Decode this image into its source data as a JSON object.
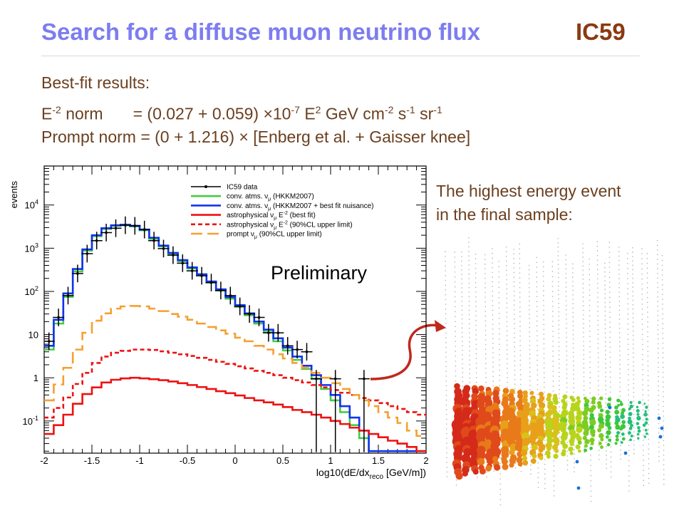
{
  "slide": {
    "title": "Search for a diffuse muon neutrino flux",
    "tag": "IC59",
    "results_heading": "Best-fit results:",
    "e2_label": "E",
    "e2_exp": "-2",
    "e2_norm_word": "norm",
    "e2_value": "= (0.027 + 0.059) ×10",
    "e2_value_exp": "-7",
    "e2_units_E": "E",
    "e2_units_E_exp": "2",
    "e2_units_rest": "GeV cm",
    "e2_units_cm_exp": "-2",
    "e2_units_s": "s",
    "e2_units_s_exp": "-1",
    "e2_units_sr": "sr",
    "e2_units_sr_exp": "-1",
    "prompt_line": "Prompt norm = (0 + 1.216) × [Enberg et al. + Gaisser knee]",
    "side_line1": "The highest energy event",
    "side_line2": "in the final sample:"
  },
  "chart_data": {
    "type": "line",
    "ylabel": "events",
    "xlabel": "log10(dE/dx",
    "xlabel_sub": "reco",
    "xlabel_tail": " [GeV/m])",
    "x_ticks": [
      "-2",
      "-1.5",
      "-1",
      "-0.5",
      "0",
      "0.5",
      "1",
      "1.5",
      "2"
    ],
    "y_ticks": [
      {
        "v": 0.1,
        "base": "10",
        "exp": "-1"
      },
      {
        "v": 1,
        "base": "1",
        "exp": ""
      },
      {
        "v": 10,
        "base": "10",
        "exp": ""
      },
      {
        "v": 100,
        "base": "10",
        "exp": "2"
      },
      {
        "v": 1000,
        "base": "10",
        "exp": "3"
      },
      {
        "v": 10000,
        "base": "10",
        "exp": "4"
      }
    ],
    "xlim": [
      -2,
      2
    ],
    "ylim": [
      0.018,
      80000
    ],
    "log_y": true,
    "annotation": "Preliminary",
    "bin_edges": [
      -2.0,
      -1.9,
      -1.8,
      -1.7,
      -1.6,
      -1.5,
      -1.4,
      -1.3,
      -1.2,
      -1.1,
      -1.0,
      -0.9,
      -0.8,
      -0.7,
      -0.6,
      -0.5,
      -0.4,
      -0.3,
      -0.2,
      -0.1,
      0.0,
      0.1,
      0.2,
      0.3,
      0.4,
      0.5,
      0.6,
      0.7,
      0.8,
      0.9,
      1.0,
      1.1,
      1.2,
      1.3,
      1.4,
      1.5,
      1.6,
      1.7,
      1.8,
      1.9,
      2.0
    ],
    "series": [
      {
        "name": "IC59 data",
        "style": "data",
        "color": "#000000",
        "points": [
          [
            -1.95,
            7
          ],
          [
            -1.85,
            25
          ],
          [
            -1.75,
            80
          ],
          [
            -1.65,
            260
          ],
          [
            -1.55,
            750
          ],
          [
            -1.45,
            1500
          ],
          [
            -1.35,
            2300
          ],
          [
            -1.25,
            2900
          ],
          [
            -1.15,
            3400
          ],
          [
            -1.05,
            3300
          ],
          [
            -0.95,
            2700
          ],
          [
            -0.85,
            1500
          ],
          [
            -0.75,
            980
          ],
          [
            -0.65,
            690
          ],
          [
            -0.55,
            450
          ],
          [
            -0.45,
            300
          ],
          [
            -0.35,
            230
          ],
          [
            -0.25,
            160
          ],
          [
            -0.15,
            105
          ],
          [
            -0.05,
            80
          ],
          [
            0.05,
            45
          ],
          [
            0.15,
            30
          ],
          [
            0.25,
            25
          ],
          [
            0.35,
            11
          ],
          [
            0.45,
            11
          ],
          [
            0.55,
            5.5
          ],
          [
            0.65,
            4.5
          ],
          [
            0.75,
            4
          ],
          [
            0.85,
            0.95
          ],
          [
            1.05,
            0.95
          ],
          [
            1.35,
            0.95
          ]
        ]
      },
      {
        "name": "conv. atms. ν",
        "name_sub": "μ",
        "name_tail": " (HKKM2007)",
        "style": "solid",
        "color": "#44cc44",
        "values": [
          4.5,
          18,
          75,
          290,
          880,
          1900,
          2800,
          3300,
          3400,
          3200,
          2600,
          1650,
          1100,
          740,
          500,
          340,
          235,
          160,
          105,
          68,
          44,
          28,
          18,
          11.5,
          7,
          4.3,
          2.6,
          1.6,
          0.95,
          0.55,
          0.3,
          0.16,
          0.08,
          0.04,
          0.02,
          0.02,
          0.02,
          0.02,
          0.02,
          0.02
        ]
      },
      {
        "name": "conv. atms. ν",
        "name_sub": "μ",
        "name_tail": " (HKKM2007 + best fit nuisance)",
        "style": "solid",
        "color": "#1133ee",
        "values": [
          5.5,
          22,
          90,
          330,
          940,
          2000,
          2900,
          3400,
          3500,
          3300,
          2700,
          1750,
          1150,
          780,
          530,
          360,
          250,
          170,
          112,
          74,
          48,
          31,
          20,
          13,
          8.2,
          5,
          3.1,
          1.9,
          1.15,
          0.68,
          0.4,
          0.22,
          0.12,
          0.06,
          0.02,
          0.02,
          0.02,
          0.02,
          0.02,
          0.02
        ]
      },
      {
        "name": "astrophysical ν",
        "name_sub": "μ",
        "name_tail": " E",
        "name_sup": "-2",
        "name_tail2": " (best fit)",
        "style": "solid",
        "color": "#ee1111",
        "values": [
          0.05,
          0.08,
          0.14,
          0.25,
          0.42,
          0.6,
          0.78,
          0.9,
          0.97,
          1.0,
          0.97,
          0.93,
          0.88,
          0.82,
          0.75,
          0.68,
          0.61,
          0.55,
          0.49,
          0.44,
          0.39,
          0.34,
          0.3,
          0.27,
          0.24,
          0.21,
          0.18,
          0.16,
          0.14,
          0.12,
          0.1,
          0.085,
          0.07,
          0.06,
          0.05,
          0.042,
          0.035,
          0.03,
          0.025,
          0.02
        ]
      },
      {
        "name": "astrophysical ν",
        "name_sub": "μ",
        "name_tail": " E",
        "name_sup": "-2",
        "name_tail2": " (90%CL upper limit)",
        "style": "dashed",
        "color": "#ee1111",
        "values": [
          0.12,
          0.2,
          0.35,
          0.72,
          1.3,
          2.2,
          3.1,
          3.8,
          4.2,
          4.5,
          4.5,
          4.4,
          4.1,
          3.8,
          3.5,
          3.2,
          2.9,
          2.6,
          2.35,
          2.1,
          1.85,
          1.65,
          1.45,
          1.3,
          1.15,
          1.0,
          0.88,
          0.78,
          0.68,
          0.6,
          0.52,
          0.45,
          0.4,
          0.34,
          0.3,
          0.26,
          0.22,
          0.19,
          0.16,
          0.14
        ]
      },
      {
        "name": "prompt ν",
        "name_sub": "μ",
        "name_tail": " (90%CL upper limit)",
        "style": "longdash",
        "color": "#f5a030",
        "values": [
          0.3,
          0.7,
          1.7,
          4.5,
          11,
          21,
          31,
          40,
          45,
          46,
          45,
          40,
          35,
          30,
          26,
          22,
          18,
          15,
          12.5,
          10.5,
          8.5,
          7,
          5.5,
          4.5,
          3.5,
          2.8,
          2.2,
          1.7,
          1.3,
          1.0,
          0.75,
          0.55,
          0.4,
          0.3,
          0.22,
          0.16,
          0.12,
          0.09,
          0.06,
          0.045
        ]
      }
    ]
  },
  "event_display": {
    "colors": [
      "#d42a1a",
      "#e04a1a",
      "#e87a1a",
      "#e8a01a",
      "#d8c21a",
      "#b8d41a",
      "#7ccc22",
      "#3cc83a",
      "#22c07a",
      "#1a70d8"
    ],
    "arrow_color": "#c0281c"
  }
}
